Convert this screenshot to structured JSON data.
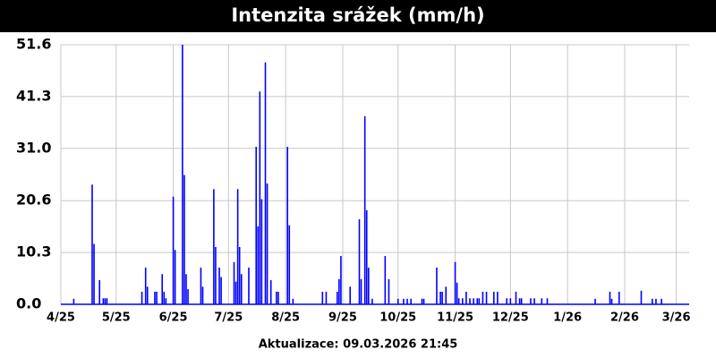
{
  "chart_data": {
    "type": "bar",
    "title": "Intenzita srážek (mm/h)",
    "footer": "Aktualizace: 09.03.2026 21:45",
    "color": "#0000ff",
    "grid": true,
    "xlim": [
      0,
      341
    ],
    "xticks": [
      {
        "value": 0,
        "label": "4/25"
      },
      {
        "value": 30,
        "label": "5/25"
      },
      {
        "value": 61,
        "label": "6/25"
      },
      {
        "value": 91,
        "label": "7/25"
      },
      {
        "value": 122,
        "label": "8/25"
      },
      {
        "value": 153,
        "label": "9/25"
      },
      {
        "value": 183,
        "label": "10/25"
      },
      {
        "value": 214,
        "label": "11/25"
      },
      {
        "value": 244,
        "label": "12/25"
      },
      {
        "value": 275,
        "label": "1/26"
      },
      {
        "value": 306,
        "label": "2/26"
      },
      {
        "value": 334,
        "label": "3/26"
      }
    ],
    "ylim": [
      0,
      51.6
    ],
    "yticks": [
      {
        "value": 0,
        "label": "0.0"
      },
      10.3,
      20.6,
      {
        "value": 31,
        "label": "31.0"
      },
      41.3,
      51.6
    ],
    "x": [
      7,
      17,
      18,
      21,
      23,
      24,
      25,
      44,
      46,
      47,
      51,
      52,
      55,
      56,
      57,
      61,
      62,
      66,
      67,
      68,
      69,
      76,
      77,
      83,
      84,
      86,
      87,
      94,
      95,
      96,
      97,
      98,
      102,
      106,
      107,
      108,
      109,
      111,
      112,
      114,
      117,
      118,
      123,
      124,
      126,
      142,
      144,
      150,
      151,
      152,
      157,
      162,
      163,
      165,
      166,
      167,
      169,
      176,
      178,
      183,
      186,
      188,
      190,
      196,
      197,
      204,
      206,
      207,
      209,
      214,
      215,
      216,
      218,
      220,
      222,
      224,
      226,
      227,
      229,
      231,
      235,
      237,
      242,
      244,
      247,
      249,
      250,
      255,
      257,
      261,
      264,
      290,
      298,
      299,
      303,
      315,
      321,
      323,
      326
    ],
    "values": [
      1.1,
      23.8,
      12,
      4.8,
      1.2,
      1.2,
      1.2,
      2.5,
      7.3,
      3.5,
      2.5,
      2.5,
      6,
      2.5,
      1.2,
      21.4,
      10.8,
      51.6,
      25.7,
      6,
      3,
      7.3,
      3.5,
      22.9,
      11.4,
      7.3,
      5.4,
      8.4,
      4.5,
      22.9,
      11.4,
      6,
      7.3,
      31.3,
      15.5,
      42.3,
      20.9,
      48.1,
      24,
      4.8,
      2.5,
      2.5,
      31.3,
      15.7,
      1.1,
      2.5,
      2.5,
      2.5,
      5,
      9.6,
      3.5,
      16.9,
      5,
      37.4,
      18.7,
      7.3,
      1.1,
      9.6,
      5,
      1.1,
      1.1,
      1.1,
      1.1,
      1.1,
      1.1,
      7.3,
      2.5,
      2.5,
      3.5,
      8.4,
      4.3,
      1.2,
      1.2,
      2.5,
      1.2,
      1.2,
      1.2,
      1.2,
      2.5,
      2.5,
      2.5,
      2.5,
      1.2,
      1.2,
      2.5,
      1.2,
      1.2,
      1.2,
      1.2,
      1.2,
      1.2,
      1.1,
      2.5,
      1.1,
      2.5,
      2.7,
      1.1,
      1.1,
      1.1
    ]
  }
}
